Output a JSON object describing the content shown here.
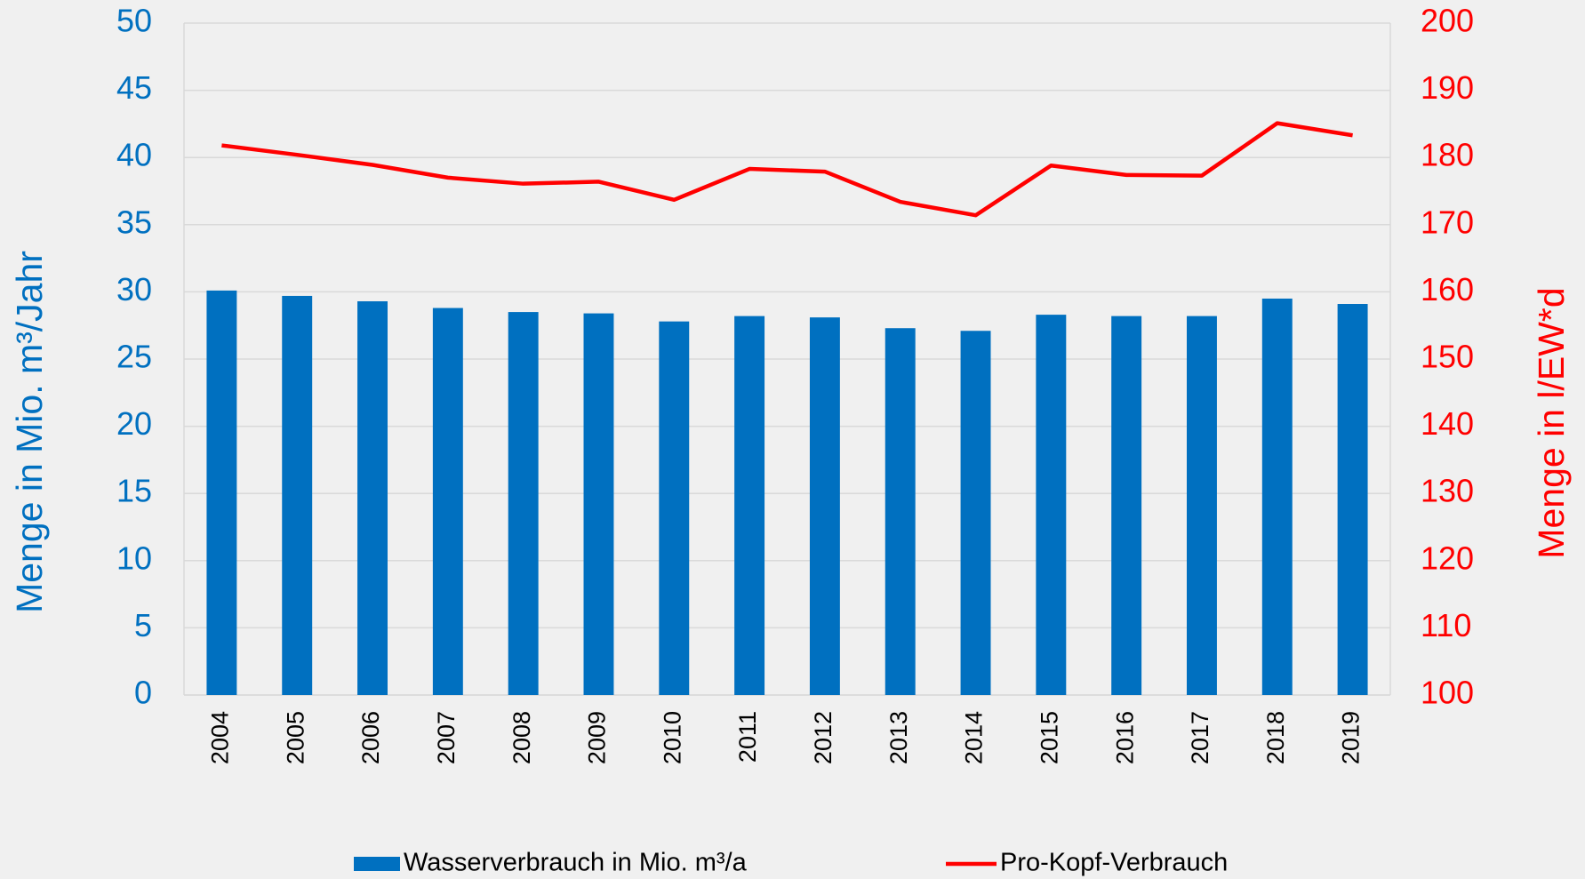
{
  "chart_data": {
    "type": "bar_line",
    "y_label": "Menge in Mio. m³/Jahr",
    "y2_label": "Menge in l/EW*d",
    "categories": [
      "2004",
      "2005",
      "2006",
      "2007",
      "2008",
      "2009",
      "2010",
      "2011",
      "2012",
      "2013",
      "2014",
      "2015",
      "2016",
      "2017",
      "2018",
      "2019"
    ],
    "series": [
      {
        "name": "Wasserverbrauch in Mio. m³/a",
        "type": "bar",
        "color": "#0070c0",
        "values": [
          30.1,
          29.7,
          29.3,
          28.8,
          28.5,
          28.4,
          27.8,
          28.2,
          28.1,
          27.3,
          27.1,
          28.3,
          28.2,
          28.2,
          29.5,
          29.1
        ]
      },
      {
        "name": "Pro-Kopf-Verbrauch",
        "type": "line",
        "axis": "y2",
        "color": "#ff0000",
        "values": [
          181.8,
          180.4,
          178.9,
          177.0,
          176.1,
          176.4,
          173.7,
          178.3,
          177.9,
          173.4,
          171.4,
          178.8,
          177.4,
          177.3,
          185.1,
          183.3
        ]
      }
    ],
    "ylim": [
      0,
      50
    ],
    "yticks": [
      0,
      5,
      10,
      15,
      20,
      25,
      30,
      35,
      40,
      45,
      50
    ],
    "y2lim": [
      100,
      200
    ],
    "y2ticks": [
      100,
      110,
      120,
      130,
      140,
      150,
      160,
      170,
      180,
      190,
      200
    ],
    "grid": true,
    "legend": "bottom"
  }
}
